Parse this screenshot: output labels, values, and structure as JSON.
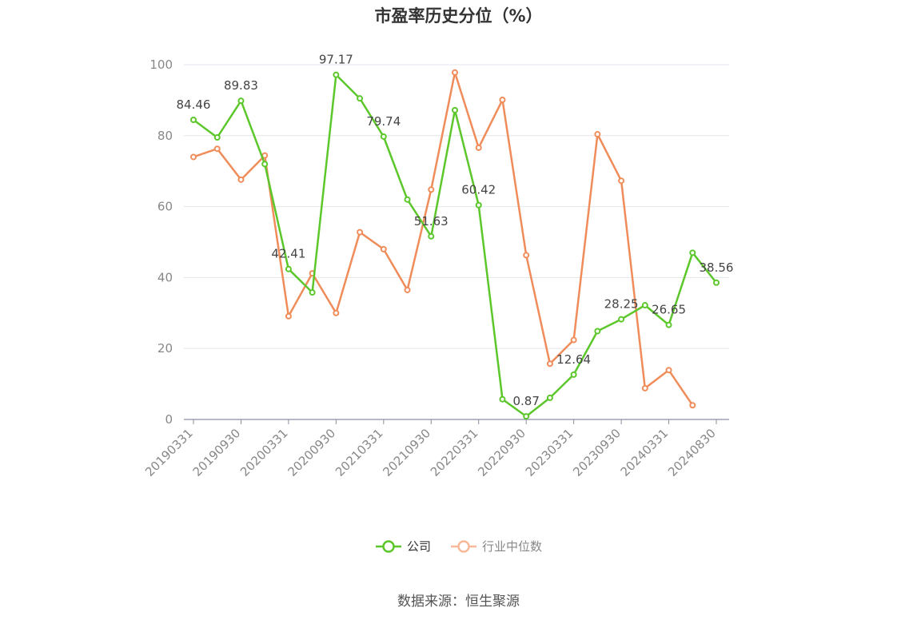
{
  "chart_data": {
    "type": "line",
    "title": "市盈率历史分位（%）",
    "ylim": [
      0,
      100
    ],
    "yticks": [
      0,
      20,
      40,
      60,
      80,
      100
    ],
    "grid": true,
    "legend_position": "bottom-center",
    "categories": [
      "20190331",
      "20190630",
      "20190930",
      "20191231",
      "20200331",
      "20200630",
      "20200930",
      "20201231",
      "20210331",
      "20210630",
      "20210930",
      "20211231",
      "20220331",
      "20220630",
      "20220930",
      "20221231",
      "20230331",
      "20230630",
      "20230930",
      "20231231",
      "20240331",
      "20240630",
      "20240830"
    ],
    "tick_labels": [
      "20190331",
      "20190930",
      "20200331",
      "20200930",
      "20210331",
      "20210930",
      "20220331",
      "20220930",
      "20230331",
      "20230930",
      "20240331",
      "20240830"
    ],
    "series": [
      {
        "name": "公司",
        "color": "#5cc72b",
        "values": [
          84.46,
          79.5,
          89.83,
          72.0,
          42.41,
          35.8,
          97.17,
          90.5,
          79.74,
          62.0,
          51.63,
          87.2,
          60.42,
          5.7,
          0.87,
          6.1,
          12.64,
          24.9,
          28.25,
          32.2,
          26.65,
          47.0,
          38.56
        ],
        "labeled": {
          "0": "84.46",
          "2": "89.83",
          "4": "42.41",
          "6": "97.17",
          "8": "79.74",
          "10": "51.63",
          "12": "60.42",
          "14": "0.87",
          "16": "12.64",
          "18": "28.25",
          "20": "26.65",
          "22": "38.56"
        }
      },
      {
        "name": "行业中位数",
        "color": "#f08c5a",
        "values": [
          74.0,
          76.3,
          67.6,
          74.4,
          29.1,
          41.2,
          30.0,
          52.8,
          48.0,
          36.5,
          64.8,
          97.8,
          76.6,
          90.1,
          46.3,
          15.7,
          22.4,
          80.4,
          67.3,
          8.8,
          13.9,
          4.0,
          null
        ]
      }
    ]
  },
  "legend": {
    "company": "公司",
    "industry": "行业中位数"
  },
  "source_text": "数据来源：恒生聚源"
}
